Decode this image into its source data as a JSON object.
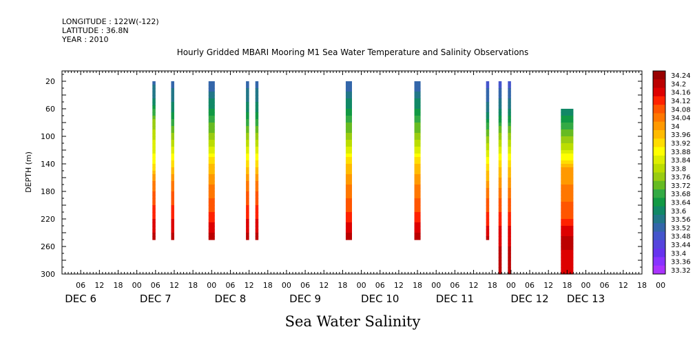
{
  "header": {
    "longitude": "LONGITUDE : 122W(-122)",
    "latitude": "LATITUDE : 36.8N",
    "year": "YEAR : 2010"
  },
  "chart_data": {
    "type": "heatmap",
    "title": "Hourly Gridded MBARI Mooring M1 Sea Water Temperature and Salinity Observations",
    "xtitle": "Sea Water Salinity",
    "ylabel": "DEPTH (m)",
    "x_range_hours": [
      -18,
      168
    ],
    "x_tick_labels": [
      "06",
      "12",
      "18",
      "00",
      "06",
      "12",
      "18",
      "00",
      "06",
      "12",
      "18",
      "00",
      "06",
      "12",
      "18",
      "00",
      "06",
      "12",
      "18",
      "00",
      "06",
      "12",
      "18",
      "00",
      "06",
      "12",
      "18",
      "00",
      "06",
      "12",
      "18",
      "00"
    ],
    "x_day_labels": [
      {
        "label": "DEC  6",
        "hour": -12
      },
      {
        "label": "DEC  7",
        "hour": 12
      },
      {
        "label": "DEC  8",
        "hour": 36
      },
      {
        "label": "DEC  9",
        "hour": 60
      },
      {
        "label": "DEC 10",
        "hour": 84
      },
      {
        "label": "DEC 11",
        "hour": 108
      },
      {
        "label": "DEC 12",
        "hour": 132
      },
      {
        "label": "DEC 13",
        "hour": 150
      }
    ],
    "ylim": [
      300,
      5
    ],
    "y_ticks": [
      20,
      60,
      100,
      140,
      180,
      220,
      260,
      300
    ],
    "colorbar": {
      "labels": [
        "34.24",
        "34.2",
        "34.16",
        "34.12",
        "34.08",
        "34.04",
        "34",
        "33.96",
        "33.92",
        "33.88",
        "33.84",
        "33.8",
        "33.76",
        "33.72",
        "33.68",
        "33.64",
        "33.6",
        "33.56",
        "33.52",
        "33.48",
        "33.44",
        "33.4",
        "33.36",
        "33.32"
      ],
      "colors": [
        "#990000",
        "#bb0000",
        "#dd0000",
        "#ff2200",
        "#ff5500",
        "#ff7700",
        "#ff9900",
        "#ffbb00",
        "#ffdd00",
        "#ffff00",
        "#ddee00",
        "#bbdd00",
        "#99cc11",
        "#66bb22",
        "#33aa44",
        "#119944",
        "#118866",
        "#227788",
        "#3366aa",
        "#4455cc",
        "#5544dd",
        "#6633ee",
        "#8833ff",
        "#aa33ff"
      ]
    },
    "columns": [
      {
        "start_hour": 11,
        "end_hour": 12,
        "top": 20,
        "bottom": 250,
        "profile": "narrow_a"
      },
      {
        "start_hour": 17,
        "end_hour": 18,
        "top": 20,
        "bottom": 250,
        "profile": "narrow_b"
      },
      {
        "start_hour": 29,
        "end_hour": 31,
        "top": 20,
        "bottom": 250,
        "profile": "wide"
      },
      {
        "start_hour": 41,
        "end_hour": 42,
        "top": 20,
        "bottom": 250,
        "profile": "narrow_b"
      },
      {
        "start_hour": 44,
        "end_hour": 45,
        "top": 20,
        "bottom": 250,
        "profile": "narrow_b"
      },
      {
        "start_hour": 73,
        "end_hour": 75,
        "top": 20,
        "bottom": 250,
        "profile": "wide"
      },
      {
        "start_hour": 95,
        "end_hour": 97,
        "top": 20,
        "bottom": 250,
        "profile": "wide"
      },
      {
        "start_hour": 118,
        "end_hour": 119,
        "top": 20,
        "bottom": 250,
        "profile": "narrow_c"
      },
      {
        "start_hour": 122,
        "end_hour": 123,
        "top": 20,
        "bottom": 300,
        "profile": "deep"
      },
      {
        "start_hour": 125,
        "end_hour": 126,
        "top": 20,
        "bottom": 300,
        "profile": "deep"
      },
      {
        "start_hour": 142,
        "end_hour": 146,
        "top": 60,
        "bottom": 300,
        "profile": "last"
      }
    ],
    "profiles": {
      "narrow_a": [
        [
          20,
          33.52
        ],
        [
          50,
          33.6
        ],
        [
          80,
          33.76
        ],
        [
          140,
          33.9
        ],
        [
          170,
          34.04
        ],
        [
          210,
          34.12
        ],
        [
          250,
          34.2
        ]
      ],
      "narrow_b": [
        [
          20,
          33.52
        ],
        [
          60,
          33.6
        ],
        [
          100,
          33.76
        ],
        [
          140,
          33.92
        ],
        [
          170,
          34.04
        ],
        [
          210,
          34.12
        ],
        [
          250,
          34.2
        ]
      ],
      "wide": [
        [
          20,
          33.5
        ],
        [
          40,
          33.56
        ],
        [
          70,
          33.66
        ],
        [
          110,
          33.8
        ],
        [
          140,
          33.94
        ],
        [
          170,
          34.02
        ],
        [
          220,
          34.12
        ],
        [
          250,
          34.2
        ]
      ],
      "narrow_c": [
        [
          20,
          33.48
        ],
        [
          60,
          33.56
        ],
        [
          100,
          33.74
        ],
        [
          140,
          33.9
        ],
        [
          180,
          34.04
        ],
        [
          230,
          34.14
        ],
        [
          250,
          34.2
        ]
      ],
      "deep": [
        [
          20,
          33.48
        ],
        [
          60,
          33.58
        ],
        [
          100,
          33.76
        ],
        [
          140,
          33.92
        ],
        [
          190,
          34.06
        ],
        [
          240,
          34.16
        ],
        [
          300,
          34.22
        ]
      ],
      "last": [
        [
          60,
          33.58
        ],
        [
          90,
          33.7
        ],
        [
          120,
          33.82
        ],
        [
          145,
          33.98
        ],
        [
          180,
          34.04
        ],
        [
          220,
          34.1
        ],
        [
          250,
          34.2
        ],
        [
          300,
          34.14
        ]
      ]
    }
  }
}
